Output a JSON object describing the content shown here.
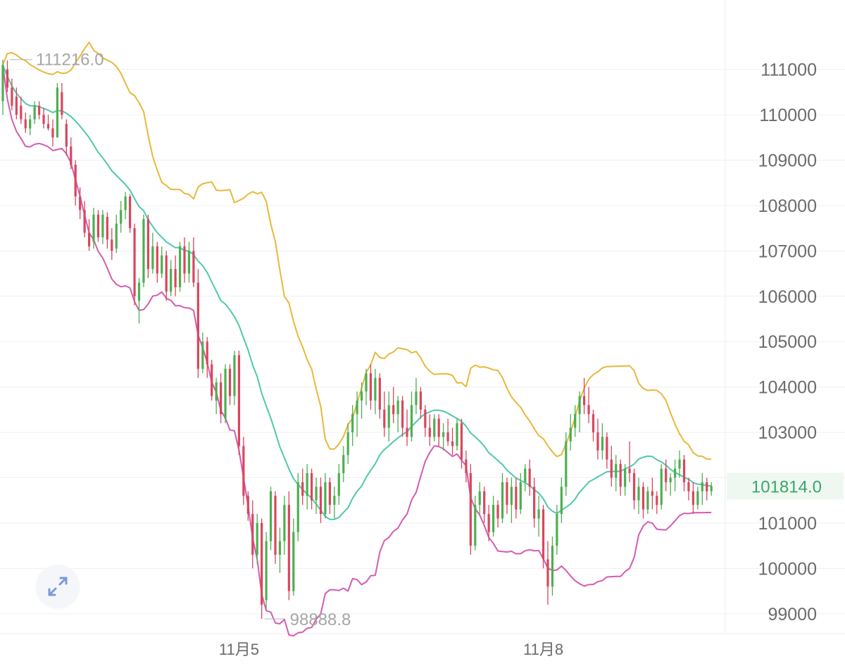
{
  "colors": {
    "up": "#4caf50",
    "down": "#d9465e",
    "upper_band": "#e9b83a",
    "middle_band": "#4fc9aa",
    "lower_band": "#d45cb0",
    "current_price": "#3aa66a",
    "grid": "#f0f0f0"
  },
  "expand_button": {
    "icon": "expand-arrows-icon"
  },
  "chart_data": {
    "type": "candlestick",
    "y_axis": {
      "position": "right",
      "range": [
        98500,
        112500
      ],
      "ticks": [
        99000,
        100000,
        101000,
        102000,
        103000,
        104000,
        105000,
        106000,
        107000,
        108000,
        109000,
        110000,
        111000
      ],
      "tick_labels": [
        "99000",
        "100000",
        "101000",
        "",
        "103000",
        "104000",
        "105000",
        "106000",
        "107000",
        "108000",
        "109000",
        "110000",
        "111000"
      ]
    },
    "x_axis": {
      "labels": [
        {
          "text": "11月5",
          "candle_index": 52
        },
        {
          "text": "11月8",
          "candle_index": 119
        }
      ]
    },
    "grid": true,
    "high_marker": {
      "label": "111216.0",
      "value": 111216.0,
      "candle_index": 0
    },
    "low_marker": {
      "label": "98888.8",
      "value": 98888.8,
      "candle_index": 57
    },
    "current_price": {
      "label": "101814.0",
      "value": 101814.0
    },
    "candles_ohlc": [
      [
        110300,
        111216,
        110000,
        111100
      ],
      [
        111000,
        111200,
        110500,
        110600
      ],
      [
        110600,
        110800,
        110100,
        110200
      ],
      [
        110400,
        110600,
        109900,
        110000
      ],
      [
        110200,
        110400,
        109800,
        109900
      ],
      [
        109900,
        110050,
        109600,
        109700
      ],
      [
        109700,
        110000,
        109550,
        109900
      ],
      [
        109900,
        110300,
        109800,
        110200
      ],
      [
        110200,
        110300,
        109900,
        110000
      ],
      [
        110000,
        110150,
        109700,
        109800
      ],
      [
        109800,
        110000,
        109650,
        109700
      ],
      [
        109700,
        109900,
        109300,
        109500
      ],
      [
        109500,
        110700,
        109500,
        110600
      ],
      [
        110500,
        110700,
        109900,
        110000
      ],
      [
        109800,
        109900,
        109100,
        109300
      ],
      [
        109300,
        109500,
        108800,
        108900
      ],
      [
        108900,
        109000,
        108000,
        108200
      ],
      [
        108200,
        108400,
        107700,
        107900
      ],
      [
        107900,
        108100,
        107300,
        107400
      ],
      [
        107400,
        107700,
        107000,
        107100
      ],
      [
        107200,
        107950,
        107050,
        107800
      ],
      [
        107800,
        107900,
        107200,
        107300
      ],
      [
        107300,
        107900,
        107150,
        107800
      ],
      [
        107750,
        107850,
        107050,
        107250
      ],
      [
        107250,
        107500,
        106800,
        107000
      ],
      [
        107050,
        107800,
        106950,
        107600
      ],
      [
        107600,
        108100,
        107400,
        107900
      ],
      [
        107900,
        108300,
        107700,
        108200
      ],
      [
        108200,
        108250,
        107400,
        107500
      ],
      [
        107500,
        107600,
        105800,
        106000
      ],
      [
        105900,
        106400,
        105400,
        106300
      ],
      [
        106300,
        107800,
        106200,
        107700
      ],
      [
        107700,
        107800,
        106400,
        106600
      ],
      [
        106600,
        107400,
        106500,
        107100
      ],
      [
        107100,
        107200,
        106300,
        106500
      ],
      [
        106500,
        107100,
        106400,
        106900
      ],
      [
        106900,
        107000,
        105900,
        106100
      ],
      [
        106100,
        106800,
        106000,
        106600
      ],
      [
        106600,
        106900,
        106000,
        106200
      ],
      [
        106200,
        107200,
        106100,
        107100
      ],
      [
        107100,
        107300,
        106300,
        106500
      ],
      [
        106500,
        107200,
        106300,
        107000
      ],
      [
        107000,
        107300,
        106200,
        106300
      ],
      [
        106300,
        106600,
        104200,
        104400
      ],
      [
        104400,
        105200,
        104300,
        105000
      ],
      [
        105000,
        105100,
        104200,
        104500
      ],
      [
        104500,
        104600,
        103700,
        103800
      ],
      [
        103700,
        104200,
        103400,
        104100
      ],
      [
        104100,
        104300,
        103200,
        103400
      ],
      [
        103300,
        104500,
        103200,
        104400
      ],
      [
        104400,
        104500,
        103600,
        103800
      ],
      [
        103800,
        104800,
        103600,
        104700
      ],
      [
        104700,
        104800,
        102500,
        102700
      ],
      [
        102700,
        102900,
        101400,
        101600
      ],
      [
        101600,
        101700,
        101050,
        101200
      ],
      [
        101200,
        101500,
        100000,
        100300
      ],
      [
        100300,
        101200,
        100100,
        101000
      ],
      [
        101000,
        101100,
        98888.8,
        99200
      ],
      [
        99300,
        100800,
        99100,
        100600
      ],
      [
        100600,
        101800,
        100400,
        101700
      ],
      [
        101600,
        101700,
        100100,
        100300
      ],
      [
        100300,
        100900,
        99900,
        100600
      ],
      [
        100600,
        101600,
        100300,
        101400
      ],
      [
        101400,
        101700,
        99300,
        99500
      ],
      [
        99500,
        101100,
        99400,
        100800
      ],
      [
        100800,
        102100,
        100600,
        101900
      ],
      [
        101900,
        102200,
        101400,
        101600
      ],
      [
        101600,
        102300,
        101300,
        102100
      ],
      [
        102100,
        102200,
        101300,
        101500
      ],
      [
        101500,
        102000,
        101200,
        101800
      ],
      [
        101800,
        102000,
        101000,
        101200
      ],
      [
        101200,
        102100,
        101100,
        101900
      ],
      [
        101900,
        102000,
        101200,
        101400
      ],
      [
        101400,
        101800,
        101100,
        101600
      ],
      [
        101600,
        102300,
        101400,
        102100
      ],
      [
        102100,
        102700,
        101900,
        102500
      ],
      [
        102500,
        103200,
        102300,
        103000
      ],
      [
        103000,
        103600,
        102700,
        103400
      ],
      [
        103400,
        103900,
        102900,
        103700
      ],
      [
        103700,
        104100,
        103300,
        103900
      ],
      [
        103900,
        104400,
        103600,
        104300
      ],
      [
        104300,
        104500,
        103500,
        103700
      ],
      [
        103700,
        104400,
        103400,
        104200
      ],
      [
        104200,
        104300,
        103300,
        103500
      ],
      [
        103500,
        103900,
        102900,
        103100
      ],
      [
        103100,
        103900,
        102800,
        103600
      ],
      [
        103600,
        104000,
        103200,
        103400
      ],
      [
        103400,
        103800,
        103000,
        103700
      ],
      [
        103700,
        103800,
        102900,
        103100
      ],
      [
        103100,
        103500,
        102700,
        102900
      ],
      [
        102900,
        103900,
        102800,
        103600
      ],
      [
        103600,
        104200,
        103400,
        103900
      ],
      [
        103900,
        104000,
        103300,
        103500
      ],
      [
        103500,
        103600,
        102900,
        103100
      ],
      [
        103100,
        103400,
        102700,
        102900
      ],
      [
        102900,
        103400,
        102800,
        103300
      ],
      [
        103300,
        103400,
        102700,
        102900
      ],
      [
        102900,
        103200,
        102600,
        103000
      ],
      [
        103000,
        103300,
        102700,
        102800
      ],
      [
        102800,
        103100,
        102500,
        102700
      ],
      [
        102700,
        103300,
        102600,
        103200
      ],
      [
        103200,
        103300,
        102200,
        102400
      ],
      [
        102400,
        102600,
        101900,
        102100
      ],
      [
        102100,
        102300,
        100300,
        100500
      ],
      [
        100500,
        101600,
        100400,
        101400
      ],
      [
        101400,
        101900,
        101200,
        101700
      ],
      [
        101700,
        101800,
        101000,
        101200
      ],
      [
        101200,
        101400,
        100600,
        100800
      ],
      [
        100800,
        101600,
        100700,
        101400
      ],
      [
        101400,
        101500,
        100900,
        101100
      ],
      [
        101100,
        102100,
        101000,
        101900
      ],
      [
        101900,
        102000,
        101200,
        101400
      ],
      [
        101400,
        102000,
        101000,
        101800
      ],
      [
        101800,
        102000,
        101100,
        101300
      ],
      [
        101300,
        102100,
        101200,
        101900
      ],
      [
        101900,
        102300,
        101700,
        102200
      ],
      [
        102200,
        102400,
        101600,
        101800
      ],
      [
        101800,
        102000,
        100900,
        101100
      ],
      [
        101100,
        101600,
        100700,
        101300
      ],
      [
        101300,
        101400,
        100000,
        100200
      ],
      [
        100200,
        100600,
        99200,
        99600
      ],
      [
        99600,
        100700,
        99400,
        100500
      ],
      [
        100500,
        101400,
        100300,
        101200
      ],
      [
        101200,
        102000,
        101000,
        101800
      ],
      [
        101800,
        103000,
        101600,
        102800
      ],
      [
        102800,
        103400,
        102600,
        103100
      ],
      [
        103100,
        103600,
        102900,
        103400
      ],
      [
        103400,
        103900,
        103000,
        103800
      ],
      [
        103800,
        104200,
        103400,
        103600
      ],
      [
        103600,
        104000,
        103200,
        103400
      ],
      [
        103400,
        103500,
        102800,
        103000
      ],
      [
        103000,
        103300,
        102400,
        102600
      ],
      [
        102600,
        103200,
        102400,
        102900
      ],
      [
        102900,
        103000,
        102200,
        102400
      ],
      [
        102400,
        102700,
        101800,
        102000
      ],
      [
        102000,
        102500,
        101700,
        102300
      ],
      [
        102300,
        102400,
        101600,
        101800
      ],
      [
        101800,
        102300,
        101600,
        102200
      ],
      [
        102200,
        102800,
        101900,
        102100
      ],
      [
        102100,
        102200,
        101300,
        101500
      ],
      [
        101500,
        102000,
        101200,
        101800
      ],
      [
        101800,
        101900,
        101100,
        101300
      ],
      [
        101300,
        101800,
        101200,
        101700
      ],
      [
        101700,
        102000,
        101300,
        101600
      ],
      [
        101600,
        101700,
        101200,
        101400
      ],
      [
        101400,
        102300,
        101300,
        102200
      ],
      [
        102200,
        102400,
        101700,
        101900
      ],
      [
        101900,
        102100,
        101600,
        102000
      ],
      [
        102000,
        102400,
        101700,
        102200
      ],
      [
        102200,
        102600,
        102000,
        102400
      ],
      [
        102400,
        102500,
        101700,
        101900
      ],
      [
        101900,
        102000,
        101500,
        101700
      ],
      [
        101700,
        101900,
        101200,
        101400
      ],
      [
        101400,
        101800,
        101300,
        101700
      ],
      [
        101700,
        102100,
        101400,
        101900
      ],
      [
        101900,
        102000,
        101500,
        101700
      ],
      [
        101700,
        101900,
        101600,
        101814
      ]
    ],
    "bollinger": {
      "period": 20,
      "std_dev": 2,
      "labels": []
    }
  }
}
